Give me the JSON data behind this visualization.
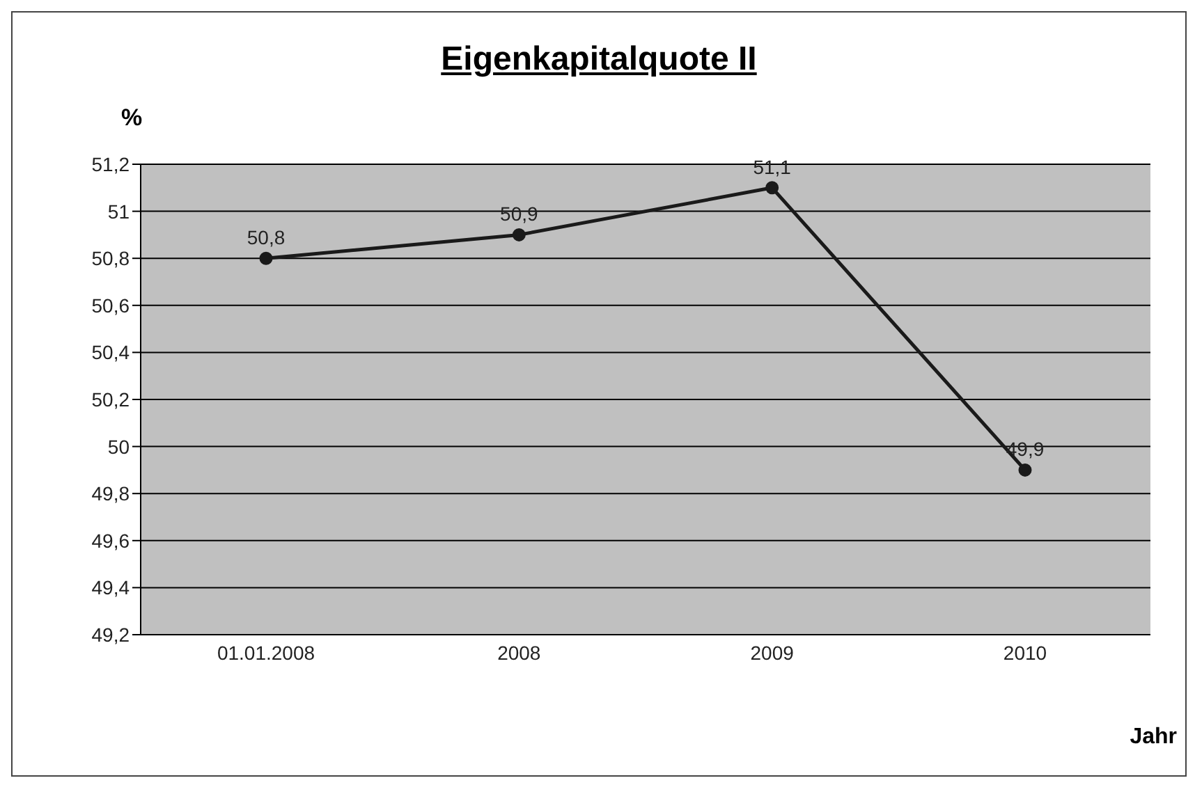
{
  "chart_data": {
    "type": "line",
    "title": "Eigenkapitalquote II",
    "xlabel": "Jahr",
    "ylabel": "%",
    "categories": [
      "01.01.2008",
      "2008",
      "2009",
      "2010"
    ],
    "series": [
      {
        "color": "#1a1a1a",
        "values": [
          50.8,
          50.9,
          51.1,
          49.9
        ],
        "value_labels": [
          "50,8",
          "50,9",
          "51,1",
          "49,9"
        ]
      }
    ],
    "ylim": [
      49.2,
      51.2
    ],
    "yticks": [
      {
        "value": 49.2,
        "label": "49,2"
      },
      {
        "value": 49.4,
        "label": "49,4"
      },
      {
        "value": 49.6,
        "label": "49,6"
      },
      {
        "value": 49.8,
        "label": "49,8"
      },
      {
        "value": 50,
        "label": "50"
      },
      {
        "value": 50.2,
        "label": "50,2"
      },
      {
        "value": 50.4,
        "label": "50,4"
      },
      {
        "value": 50.6,
        "label": "50,6"
      },
      {
        "value": 50.8,
        "label": "50,8"
      },
      {
        "value": 51,
        "label": "51"
      },
      {
        "value": 51.2,
        "label": "51,2"
      }
    ],
    "grid": "y",
    "marker": "circle",
    "line_style": "solid"
  }
}
